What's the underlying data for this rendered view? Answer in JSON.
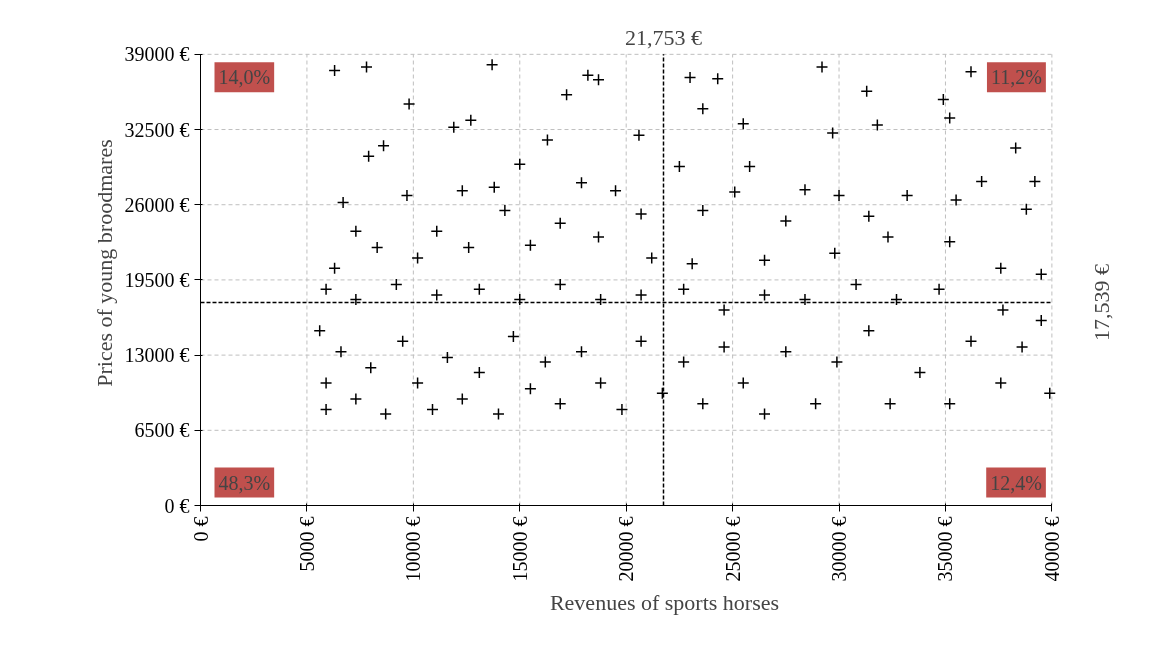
{
  "chart_data": {
    "type": "scatter",
    "xlabel": "Revenues of sports horses",
    "ylabel": "Prices of young broodmares",
    "xlim": [
      0,
      40000
    ],
    "ylim": [
      0,
      39000
    ],
    "xticks": [
      {
        "value": 0,
        "label": "0 €"
      },
      {
        "value": 5000,
        "label": "5000 €"
      },
      {
        "value": 10000,
        "label": "10000 €"
      },
      {
        "value": 15000,
        "label": "15000 €"
      },
      {
        "value": 20000,
        "label": "20000 €"
      },
      {
        "value": 25000,
        "label": "25000 €"
      },
      {
        "value": 30000,
        "label": "30000 €"
      },
      {
        "value": 35000,
        "label": "35000 €"
      },
      {
        "value": 40000,
        "label": "40000 €"
      }
    ],
    "yticks": [
      {
        "value": 0,
        "label": "0 €"
      },
      {
        "value": 6500,
        "label": "6500 €"
      },
      {
        "value": 13000,
        "label": "13000 €"
      },
      {
        "value": 19500,
        "label": "19500 €"
      },
      {
        "value": 26000,
        "label": "26000 €"
      },
      {
        "value": 32500,
        "label": "32500 €"
      },
      {
        "value": 39000,
        "label": "39000 €"
      }
    ],
    "grid": true,
    "marker": "cross",
    "ref_lines": [
      {
        "axis": "x",
        "value": 21753,
        "label": "21,753 €"
      },
      {
        "axis": "y",
        "value": 17539,
        "label": "17,539 €"
      }
    ],
    "annotations": [
      "14,0%",
      "11,2%",
      "48,3%",
      "12,4%"
    ],
    "series": [
      {
        "color": "#000000",
        "x": [
          6300,
          7800,
          13700,
          17200,
          9800,
          12700,
          8600,
          18700,
          18200,
          23000,
          24300,
          23600,
          25500,
          29200,
          31300,
          34900,
          36200,
          38300,
          35200,
          31800,
          29700,
          25800,
          22500,
          20600,
          16300,
          15000,
          11900,
          7900,
          6700,
          9700,
          12300,
          13800,
          17900,
          19500,
          25100,
          28400,
          30000,
          33200,
          35500,
          36700,
          39200,
          38800,
          31400,
          27500,
          23600,
          20700,
          16900,
          14300,
          11100,
          7300,
          8300,
          10200,
          12600,
          15500,
          18700,
          21200,
          23100,
          26500,
          29800,
          32300,
          35200,
          37600,
          39500,
          6300,
          5900,
          7300,
          9200,
          11100,
          13100,
          15000,
          16900,
          18800,
          20700,
          22700,
          24600,
          26500,
          28400,
          30800,
          32700,
          34700,
          37700,
          39500,
          5600,
          5900,
          5900,
          6600,
          7300,
          8000,
          8700,
          9500,
          10200,
          10900,
          11600,
          12300,
          13100,
          14000,
          14700,
          15500,
          16200,
          16900,
          17900,
          18800,
          19800,
          20700,
          21700,
          22700,
          23600,
          24600,
          25500,
          26500,
          27500,
          28900,
          29900,
          31400,
          32400,
          33800,
          35200,
          36200,
          37600,
          39900,
          38600
        ],
        "values": [
          37600,
          37900,
          38100,
          35500,
          34700,
          33300,
          31100,
          36800,
          37200,
          37000,
          36900,
          34300,
          33000,
          37900,
          35800,
          35100,
          37500,
          30900,
          33500,
          32900,
          32200,
          29300,
          29300,
          32000,
          31600,
          29500,
          32700,
          30200,
          26200,
          26800,
          27200,
          27500,
          27900,
          27200,
          27100,
          27300,
          26800,
          26800,
          26400,
          28000,
          28000,
          25600,
          25000,
          24600,
          25500,
          25200,
          24400,
          25500,
          23700,
          23700,
          22300,
          21400,
          22300,
          22500,
          23200,
          21400,
          20900,
          21200,
          21800,
          23200,
          22800,
          20500,
          20000,
          20500,
          18700,
          17800,
          19100,
          18200,
          18700,
          17800,
          19100,
          17800,
          18200,
          18700,
          16900,
          18200,
          17800,
          19100,
          17800,
          18700,
          16900,
          16000,
          15100,
          10600,
          8300,
          13300,
          9200,
          11900,
          7900,
          14200,
          10600,
          8300,
          12800,
          9200,
          11500,
          7900,
          14600,
          10100,
          12400,
          8800,
          13300,
          10600,
          8300,
          14200,
          9700,
          12400,
          8800,
          13700,
          10600,
          7900,
          13300,
          8800,
          12400,
          15100,
          8800,
          11500,
          8800,
          14200,
          10600,
          9700,
          13700
        ]
      }
    ]
  }
}
